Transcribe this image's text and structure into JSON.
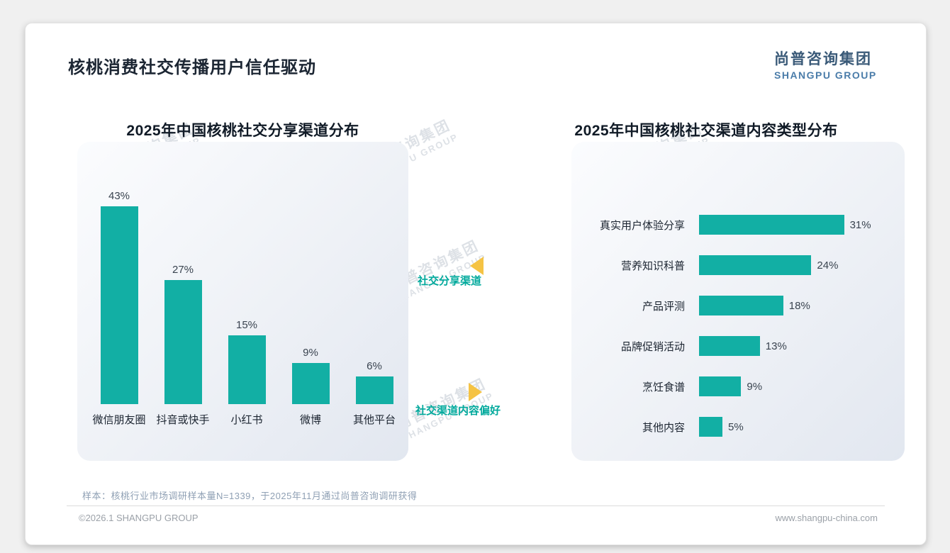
{
  "header": {
    "title": "核桃消费社交传播用户信任驱动"
  },
  "logo": {
    "cn": "尚普咨询集团",
    "en": "SHANGPU GROUP"
  },
  "watermark": {
    "cn": "尚普咨询集团",
    "en": "SHANGPU GROUP"
  },
  "annotations": {
    "left_label": "社交分享渠道",
    "right_label": "社交渠道内容偏好"
  },
  "chart_data": [
    {
      "type": "bar",
      "orientation": "vertical",
      "title": "2025年中国核桃社交分享渠道分布",
      "categories": [
        "微信朋友圈",
        "抖音或快手",
        "小红书",
        "微博",
        "其他平台"
      ],
      "values": [
        43,
        27,
        15,
        9,
        6
      ],
      "unit": "%",
      "ylim": [
        0,
        50
      ],
      "grid": false,
      "value_labels": true
    },
    {
      "type": "bar",
      "orientation": "horizontal",
      "title": "2025年中国核桃社交渠道内容类型分布",
      "categories": [
        "真实用户体验分享",
        "营养知识科普",
        "产品评测",
        "品牌促销活动",
        "烹饪食谱",
        "其他内容"
      ],
      "values": [
        31,
        24,
        18,
        13,
        9,
        5
      ],
      "unit": "%",
      "xlim": [
        0,
        35
      ],
      "grid": false,
      "value_labels": true
    }
  ],
  "footer": {
    "sample_note": "样本：核桃行业市场调研样本量N=1339，于2025年11月通过尚普咨询调研获得",
    "left": "©2026.1 SHANGPU GROUP",
    "right": "www.shangpu-china.com"
  },
  "colors": {
    "bar": "#12AFA4",
    "accent_text": "#00A99C",
    "arrow": "#F5C344",
    "logo_cn": "#3A5A78",
    "logo_en": "#4A7CA9"
  }
}
